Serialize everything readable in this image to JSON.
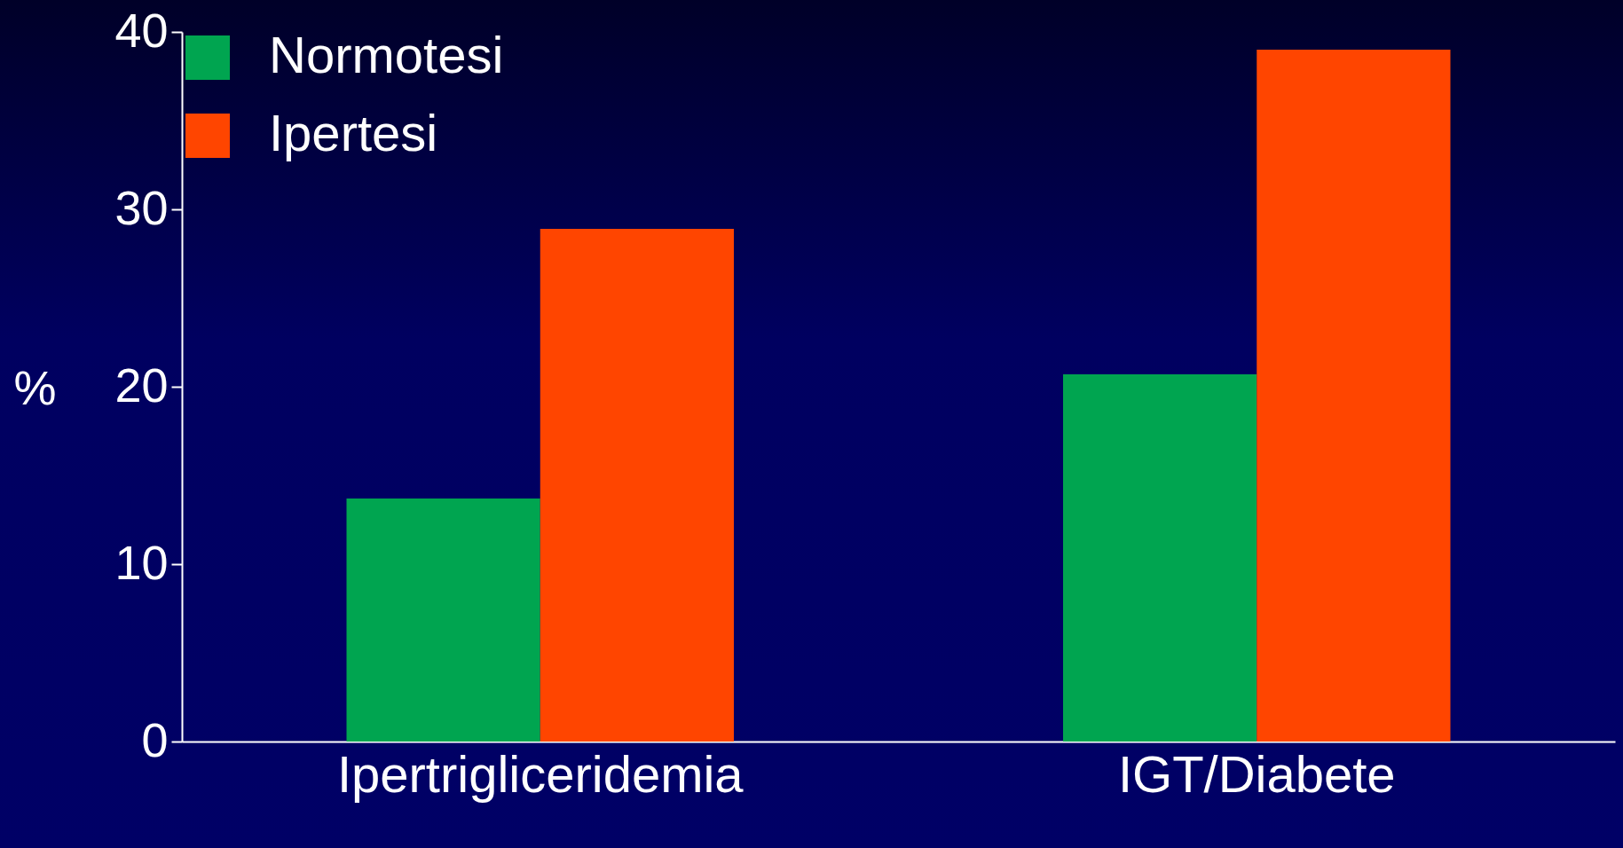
{
  "chart_data": {
    "type": "bar",
    "ylabel": "%",
    "categories": [
      "Ipertrigliceridemia",
      "IGT/Diabete"
    ],
    "series": [
      {
        "name": "Normotesi",
        "color": "#00a550",
        "values": [
          13.7,
          20.7
        ]
      },
      {
        "name": "Ipertesi",
        "color": "#ff4500",
        "values": [
          28.9,
          39
        ]
      }
    ],
    "ylim": [
      0,
      40
    ],
    "yticks": [
      0,
      10,
      20,
      30,
      40
    ],
    "legend": "top left"
  }
}
